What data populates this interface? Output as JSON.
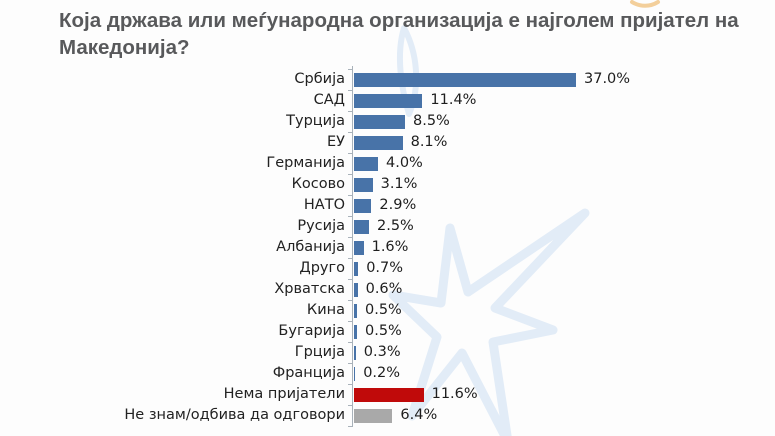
{
  "title": "Која држава или меѓународна организација е најголем пријател на Македонија?",
  "colors": {
    "bar_blue": "#4873a8",
    "bar_red": "#c00a0a",
    "bar_gray": "#a9a9a9",
    "axis": "#a9b2ba",
    "title_text": "#58595b",
    "label_text": "#222222",
    "watermark_blue": "#e2ecf7",
    "watermark_orange": "#f3cf9b"
  },
  "chart_data": {
    "type": "bar",
    "orientation": "horizontal",
    "title": "Која држава или меѓународна организација е најголем пријател на Македонија?",
    "xlabel": "",
    "ylabel": "",
    "xlim": [
      0,
      40
    ],
    "grid": false,
    "legend": false,
    "value_label_format": "percent_one_decimal",
    "categories": [
      "Србија",
      "САД",
      "Турција",
      "ЕУ",
      "Германија",
      "Косово",
      "НАТО",
      "Русија",
      "Албанија",
      "Друго",
      "Хрватска",
      "Кина",
      "Бугарија",
      "Грција",
      "Франција",
      "Нема пријатели",
      "Не знам/одбива да одговори"
    ],
    "values": [
      37.0,
      11.4,
      8.5,
      8.1,
      4.0,
      3.1,
      2.9,
      2.5,
      1.6,
      0.7,
      0.6,
      0.5,
      0.5,
      0.3,
      0.2,
      11.6,
      6.4
    ],
    "value_labels": [
      "37.0%",
      "11.4%",
      "8.5%",
      "8.1%",
      "4.0%",
      "3.1%",
      "2.9%",
      "2.5%",
      "1.6%",
      "0.7%",
      "0.6%",
      "0.5%",
      "0.5%",
      "0.3%",
      "0.2%",
      "11.6%",
      "6.4%"
    ],
    "bar_colors": [
      "#4873a8",
      "#4873a8",
      "#4873a8",
      "#4873a8",
      "#4873a8",
      "#4873a8",
      "#4873a8",
      "#4873a8",
      "#4873a8",
      "#4873a8",
      "#4873a8",
      "#4873a8",
      "#4873a8",
      "#4873a8",
      "#4873a8",
      "#c00a0a",
      "#a9a9a9"
    ]
  }
}
